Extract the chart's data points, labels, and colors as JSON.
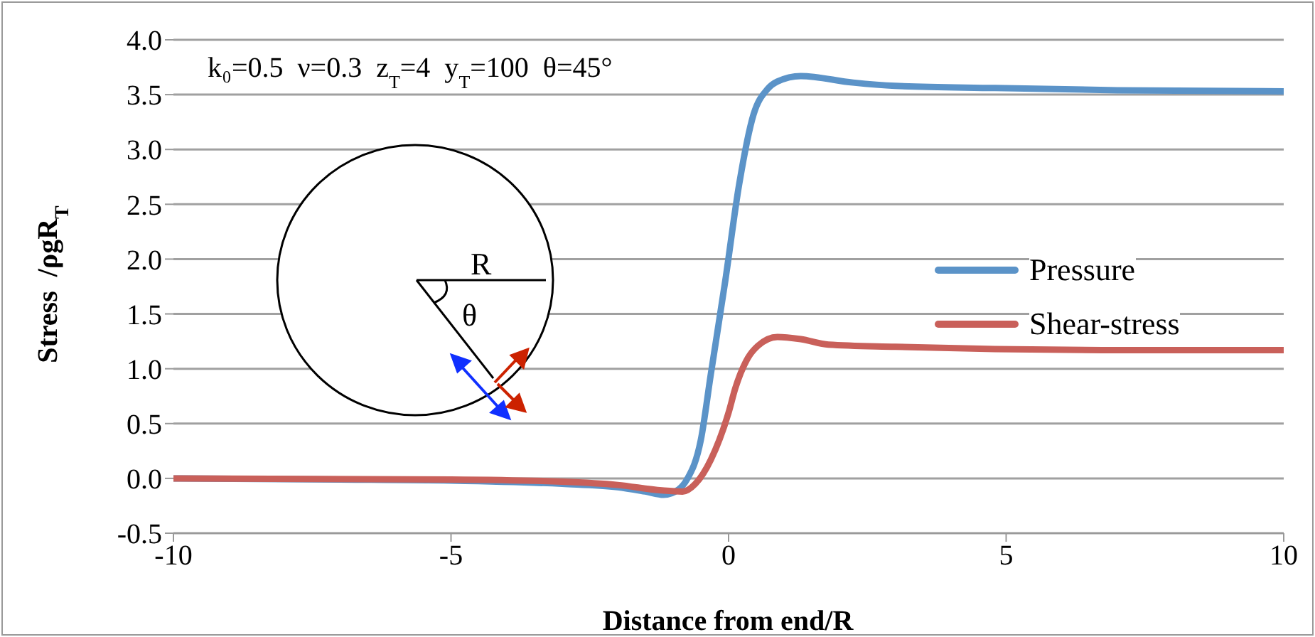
{
  "chart_data": {
    "type": "line",
    "xlabel": "Distance from end/R",
    "ylabel": "Stress  /ρgR$_{T}$",
    "annotations": [
      "k₀=0.5  ν=0.3  z$_{T}$=4  y$_{T}$=100  θ=45°",
      "R",
      "θ"
    ],
    "xlim": [
      -10,
      10
    ],
    "xticks": [
      -10,
      -5,
      0,
      5,
      10
    ],
    "ylim": [
      -0.5,
      4
    ],
    "yticks": [
      {
        "value": -0.5,
        "label": "-0.5"
      },
      {
        "value": 0,
        "label": "0.0"
      },
      {
        "value": 0.5,
        "label": "0.5"
      },
      {
        "value": 1,
        "label": "1.0"
      },
      {
        "value": 1.5,
        "label": "1.5"
      },
      {
        "value": 2,
        "label": "2.0"
      },
      {
        "value": 2.5,
        "label": "2.5"
      },
      {
        "value": 3,
        "label": "3.0"
      },
      {
        "value": 3.5,
        "label": "3.5"
      },
      {
        "value": 4,
        "label": "4.0"
      }
    ],
    "grid": "y",
    "legend": "right",
    "marker": "none",
    "line_style": "solid",
    "series": [
      {
        "name": "Pressure",
        "color": "#5b93c8",
        "x": [
          -10,
          -7,
          -5,
          -3,
          -2,
          -1.5,
          -1.17,
          -0.9,
          -0.75,
          -0.5,
          -0.32,
          -0.06,
          0.19,
          0.45,
          0.7,
          0.88,
          1.3,
          2.24,
          3,
          4.8,
          7,
          10
        ],
        "values": [
          0,
          -0.01,
          -0.02,
          -0.05,
          -0.08,
          -0.12,
          -0.15,
          -0.1,
          -0.01,
          0.35,
          0.95,
          1.8,
          2.68,
          3.32,
          3.55,
          3.62,
          3.67,
          3.61,
          3.58,
          3.56,
          3.54,
          3.53
        ]
      },
      {
        "name": "Shear-stress",
        "color": "#c9605a",
        "x": [
          -10,
          -5,
          -3,
          -2,
          -1.2,
          -0.83,
          -0.6,
          -0.32,
          0,
          0.12,
          0.35,
          0.53,
          0.88,
          1.3,
          1.8,
          3,
          4.8,
          7,
          10
        ],
        "values": [
          0,
          -0.01,
          -0.03,
          -0.06,
          -0.11,
          -0.12,
          -0.05,
          0.17,
          0.6,
          0.82,
          1.1,
          1.21,
          1.29,
          1.27,
          1.22,
          1.2,
          1.18,
          1.17,
          1.17
        ]
      }
    ]
  }
}
